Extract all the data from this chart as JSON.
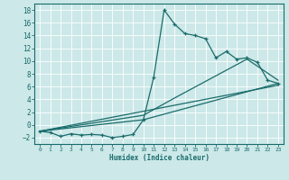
{
  "xlabel": "Humidex (Indice chaleur)",
  "bg_color": "#cce8e8",
  "line_color": "#1a6b6b",
  "grid_color": "#aed4d4",
  "xlim": [
    -0.5,
    23.5
  ],
  "ylim": [
    -3,
    19
  ],
  "xticks": [
    0,
    1,
    2,
    3,
    4,
    5,
    6,
    7,
    8,
    9,
    10,
    11,
    12,
    13,
    14,
    15,
    16,
    17,
    18,
    19,
    20,
    21,
    22,
    23
  ],
  "yticks": [
    -2,
    0,
    2,
    4,
    6,
    8,
    10,
    12,
    14,
    16,
    18
  ],
  "series1_x": [
    0,
    1,
    2,
    3,
    4,
    5,
    6,
    7,
    8,
    9,
    10,
    11,
    12,
    13,
    14,
    15,
    16,
    17,
    18,
    19,
    20,
    21,
    22,
    23
  ],
  "series1_y": [
    -1.0,
    -1.2,
    -1.8,
    -1.4,
    -1.6,
    -1.5,
    -1.6,
    -2.0,
    -1.8,
    -1.5,
    0.8,
    7.5,
    18.0,
    15.8,
    14.3,
    14.0,
    13.5,
    10.5,
    11.5,
    10.3,
    10.5,
    9.8,
    7.0,
    6.5
  ],
  "series2_x": [
    0,
    23
  ],
  "series2_y": [
    -1.0,
    6.2
  ],
  "series3_x": [
    0,
    10,
    23
  ],
  "series3_y": [
    -1.0,
    0.8,
    6.5
  ],
  "series4_x": [
    0,
    10,
    13,
    20,
    23
  ],
  "series4_y": [
    -1.0,
    1.5,
    4.2,
    10.3,
    7.0
  ]
}
